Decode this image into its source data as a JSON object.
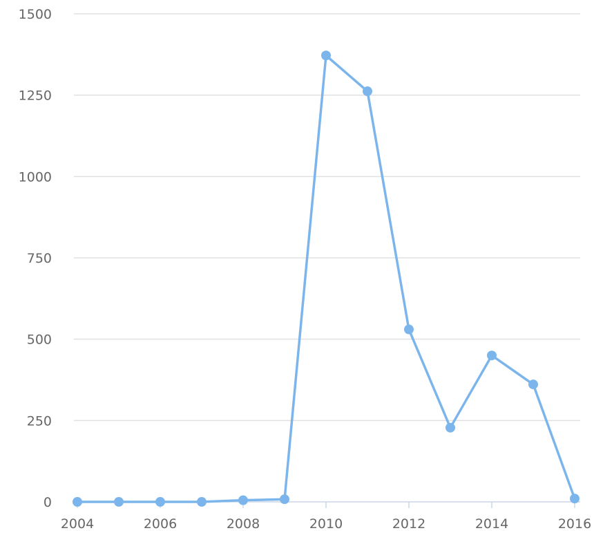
{
  "chart_data": {
    "type": "line",
    "title": "",
    "xlabel": "",
    "ylabel": "",
    "x": [
      2004,
      2005,
      2006,
      2007,
      2008,
      2009,
      2010,
      2011,
      2012,
      2013,
      2014,
      2015,
      2016
    ],
    "series": [
      {
        "values": [
          0,
          0,
          0,
          0,
          5,
          8,
          1372,
          1262,
          530,
          228,
          450,
          361,
          10
        ],
        "color": "#7cb5ec"
      }
    ],
    "ylim": [
      0,
      1500
    ],
    "xlim": [
      2004,
      2016
    ],
    "y_ticks": [
      "0",
      "250",
      "500",
      "750",
      "1000",
      "1250",
      "1500"
    ],
    "x_ticks": [
      "2004",
      "2006",
      "2008",
      "2010",
      "2012",
      "2014",
      "2016"
    ],
    "grid": true,
    "markers": true
  }
}
